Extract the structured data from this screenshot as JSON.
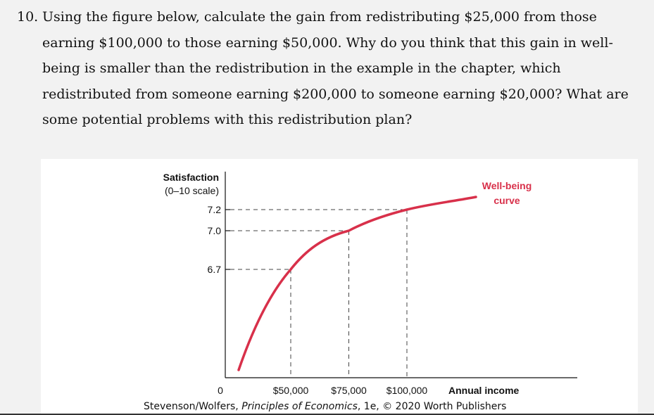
{
  "question": {
    "number": "10.",
    "text": "Using the figure below, calculate the gain from redistributing $25,000 from those earning $100,000 to those earning $50,000. Why do you think that this gain in well-being is smaller than the redistribution in the example in the chapter, which redistributed from someone earning $200,000 to someone earning $20,000? What are some potential problems with this redistribution plan?"
  },
  "figure": {
    "caption_authors": "Stevenson/Wolfers, ",
    "caption_title": "Principles of Economics",
    "caption_rest": ", 1e, © 2020 Worth Publishers"
  },
  "chart_data": {
    "type": "line",
    "ylabel_line1": "Satisfaction",
    "ylabel_line2": "(0–10 scale)",
    "xlabel": "Annual income",
    "x_origin_label": "0",
    "curve_label_line1": "Well-being",
    "curve_label_line2": "curve",
    "curve_color": "#d8304a",
    "x_ticks": [
      {
        "value": 50000,
        "label": "$50,000"
      },
      {
        "value": 75000,
        "label": "$75,000"
      },
      {
        "value": 100000,
        "label": "$100,000"
      }
    ],
    "y_ticks": [
      {
        "value": 6.7,
        "label": "6.7"
      },
      {
        "value": 7.0,
        "label": "7.0"
      },
      {
        "value": 7.2,
        "label": "7.2"
      }
    ],
    "highlighted_points": [
      {
        "x": 50000,
        "y": 6.7
      },
      {
        "x": 75000,
        "y": 7.0
      },
      {
        "x": 100000,
        "y": 7.2
      }
    ]
  }
}
